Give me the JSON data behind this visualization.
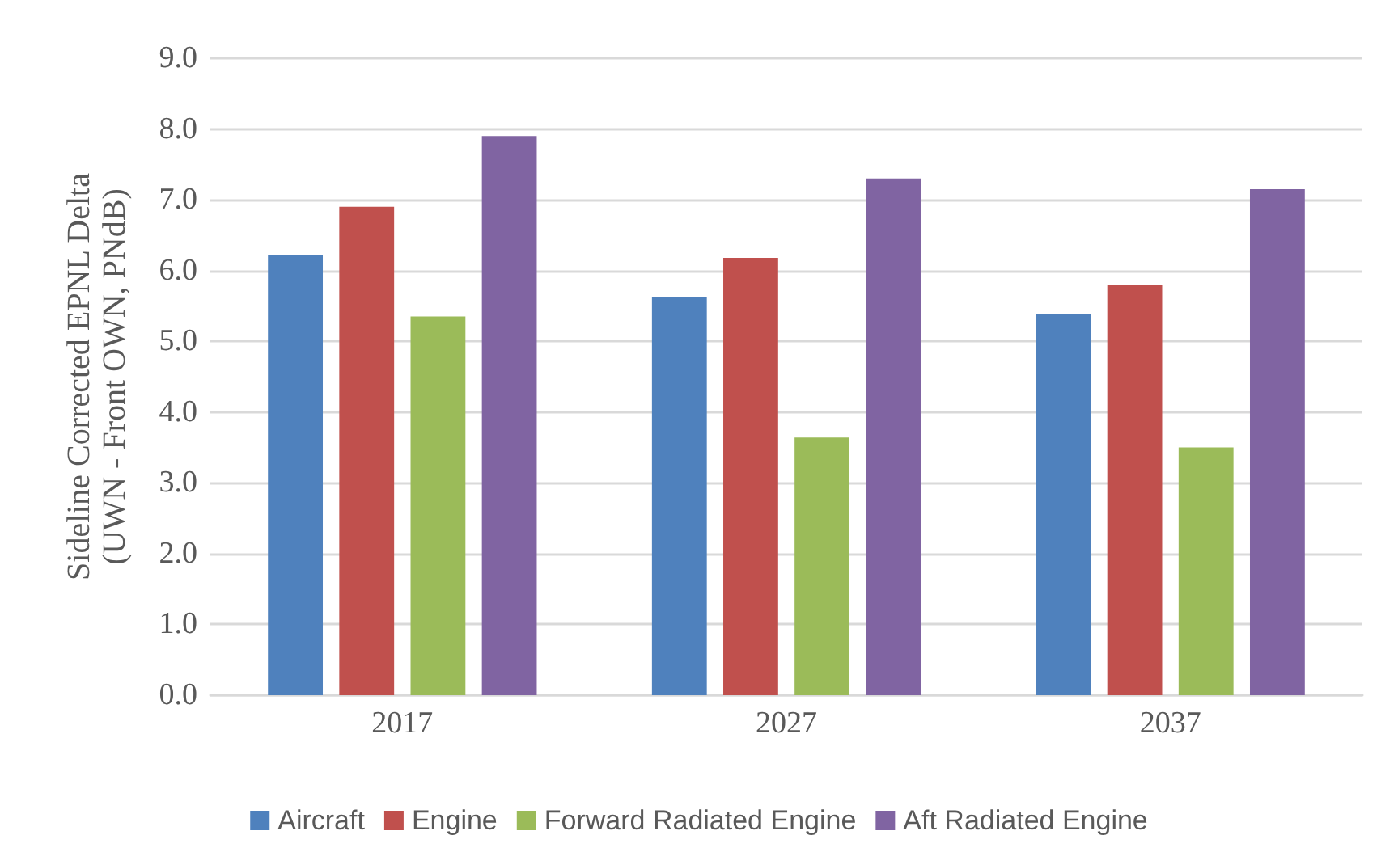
{
  "chart_data": {
    "type": "bar",
    "ylabel": "Sideline Corrected EPNL Delta\n(UWN - Front OWN, PNdB)",
    "categories": [
      "2017",
      "2027",
      "2037"
    ],
    "series": [
      {
        "name": "Aircraft",
        "color": "#4f81bd",
        "values": [
          6.22,
          5.62,
          5.38
        ]
      },
      {
        "name": "Engine",
        "color": "#c0504d",
        "values": [
          6.9,
          6.18,
          5.8
        ]
      },
      {
        "name": "Forward Radiated Engine",
        "color": "#9bbb59",
        "values": [
          5.35,
          3.64,
          3.5
        ]
      },
      {
        "name": "Aft Radiated Engine",
        "color": "#8064a2",
        "values": [
          7.9,
          7.3,
          7.15
        ]
      }
    ],
    "ylim": [
      0,
      9
    ],
    "yticks": [
      {
        "value": 0,
        "label": "0.0"
      },
      {
        "value": 1,
        "label": "1.0"
      },
      {
        "value": 2,
        "label": "2.0"
      },
      {
        "value": 3,
        "label": "3.0"
      },
      {
        "value": 4,
        "label": "4.0"
      },
      {
        "value": 5,
        "label": "5.0"
      },
      {
        "value": 6,
        "label": "6.0"
      },
      {
        "value": 7,
        "label": "7.0"
      },
      {
        "value": 8,
        "label": "8.0"
      },
      {
        "value": 9,
        "label": "9.0"
      }
    ],
    "grid": "y",
    "legend": "bottom"
  }
}
